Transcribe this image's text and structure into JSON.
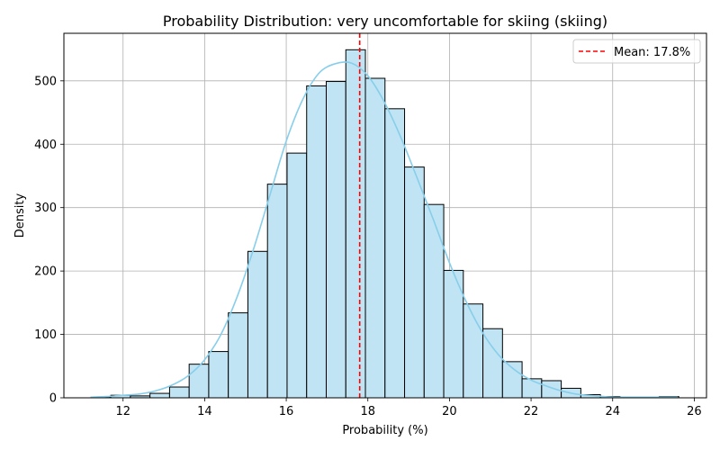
{
  "chart_data": {
    "type": "bar",
    "title": "Probability Distribution: very uncomfortable for skiing (skiing)",
    "xlabel": "Probability (%)",
    "ylabel": "Density",
    "xlim": [
      10.55,
      26.3
    ],
    "ylim": [
      0,
      575
    ],
    "x_ticks": [
      12,
      14,
      16,
      18,
      20,
      22,
      24,
      26
    ],
    "y_ticks": [
      0,
      100,
      200,
      300,
      400,
      500
    ],
    "grid": true,
    "histogram": {
      "bin_edges": [
        11.22,
        11.7,
        12.18,
        12.66,
        13.14,
        13.62,
        14.1,
        14.58,
        15.06,
        15.54,
        16.02,
        16.5,
        16.98,
        17.46,
        17.94,
        18.42,
        18.9,
        19.38,
        19.86,
        20.34,
        20.82,
        21.3,
        21.78,
        22.26,
        22.74,
        23.22,
        23.7,
        24.18,
        24.66,
        25.14,
        25.62
      ],
      "counts": [
        1,
        4,
        3,
        7,
        17,
        53,
        73,
        134,
        231,
        337,
        386,
        492,
        499,
        549,
        504,
        456,
        364,
        305,
        201,
        148,
        109,
        57,
        30,
        27,
        15,
        5,
        2,
        1,
        1,
        2
      ],
      "fill_color": "#c0e4f3",
      "edge_color": "#000000"
    },
    "kde": {
      "x": [
        11.2,
        11.6,
        12.0,
        12.4,
        12.8,
        13.2,
        13.6,
        14.0,
        14.4,
        14.8,
        15.2,
        15.6,
        16.0,
        16.4,
        16.8,
        17.2,
        17.6,
        18.0,
        18.4,
        18.8,
        19.2,
        19.6,
        20.0,
        20.4,
        20.8,
        21.2,
        21.6,
        22.0,
        22.4,
        22.8,
        23.2,
        23.6,
        24.0,
        24.4,
        24.8,
        25.2,
        25.6
      ],
      "y": [
        1,
        2,
        4,
        6,
        11,
        20,
        35,
        60,
        100,
        160,
        235,
        320,
        405,
        470,
        512,
        527,
        528,
        508,
        467,
        412,
        348,
        282,
        213,
        153,
        104,
        68,
        44,
        28,
        18,
        10,
        5,
        3,
        1,
        1,
        1,
        1,
        1
      ],
      "color": "#87ceeb"
    },
    "mean": {
      "value": 17.8,
      "label": "Mean: 17.8%",
      "color": "#ff0000",
      "style": "dashed"
    },
    "legend": {
      "placement": "top-right",
      "entries": [
        "Mean: 17.8%"
      ]
    }
  }
}
